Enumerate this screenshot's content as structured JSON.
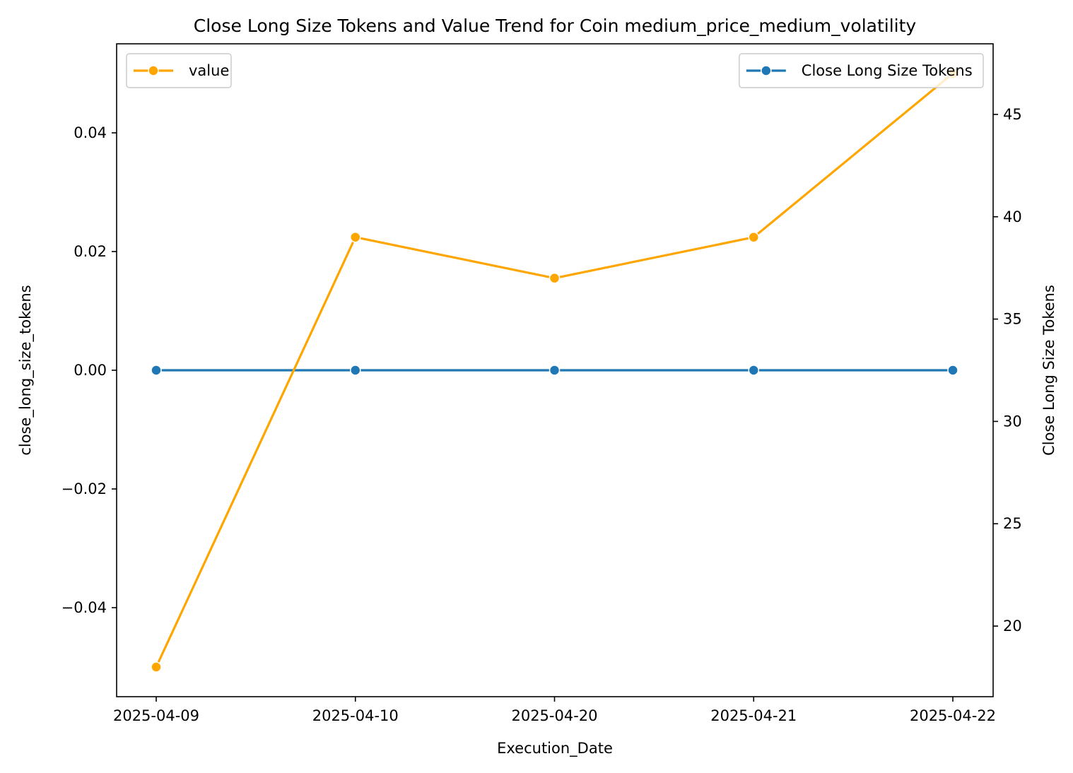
{
  "chart_data": {
    "type": "line",
    "title": "Close Long Size Tokens and Value Trend for Coin medium_price_medium_volatility",
    "xlabel": "Execution_Date",
    "ylabel_left": "close_long_size_tokens",
    "ylabel_right": "Close Long Size Tokens",
    "categories": [
      "2025-04-09",
      "2025-04-10",
      "2025-04-20",
      "2025-04-21",
      "2025-04-22"
    ],
    "left_axis": {
      "ylim": [
        -0.055,
        0.055
      ],
      "ticks": [
        -0.04,
        -0.02,
        0.0,
        0.02,
        0.04
      ],
      "tick_labels": [
        "−0.04",
        "−0.02",
        "0.00",
        "0.02",
        "0.04"
      ]
    },
    "right_axis": {
      "ylim": [
        16.55,
        48.45
      ],
      "ticks": [
        20,
        25,
        30,
        35,
        40,
        45
      ],
      "tick_labels": [
        "20",
        "25",
        "30",
        "35",
        "40",
        "45"
      ]
    },
    "series": [
      {
        "name": "Close Long Size Tokens",
        "axis": "left",
        "color": "#1f77b4",
        "marker": "circle",
        "values": [
          0,
          0,
          0,
          0,
          0
        ]
      },
      {
        "name": "value",
        "axis": "right",
        "color": "#ffa500",
        "marker": "circle",
        "values": [
          18,
          39,
          37,
          39,
          47
        ]
      }
    ],
    "legends": [
      {
        "position": "upper-left",
        "series": "value"
      },
      {
        "position": "upper-right",
        "series": "Close Long Size Tokens"
      }
    ],
    "grid": false
  }
}
